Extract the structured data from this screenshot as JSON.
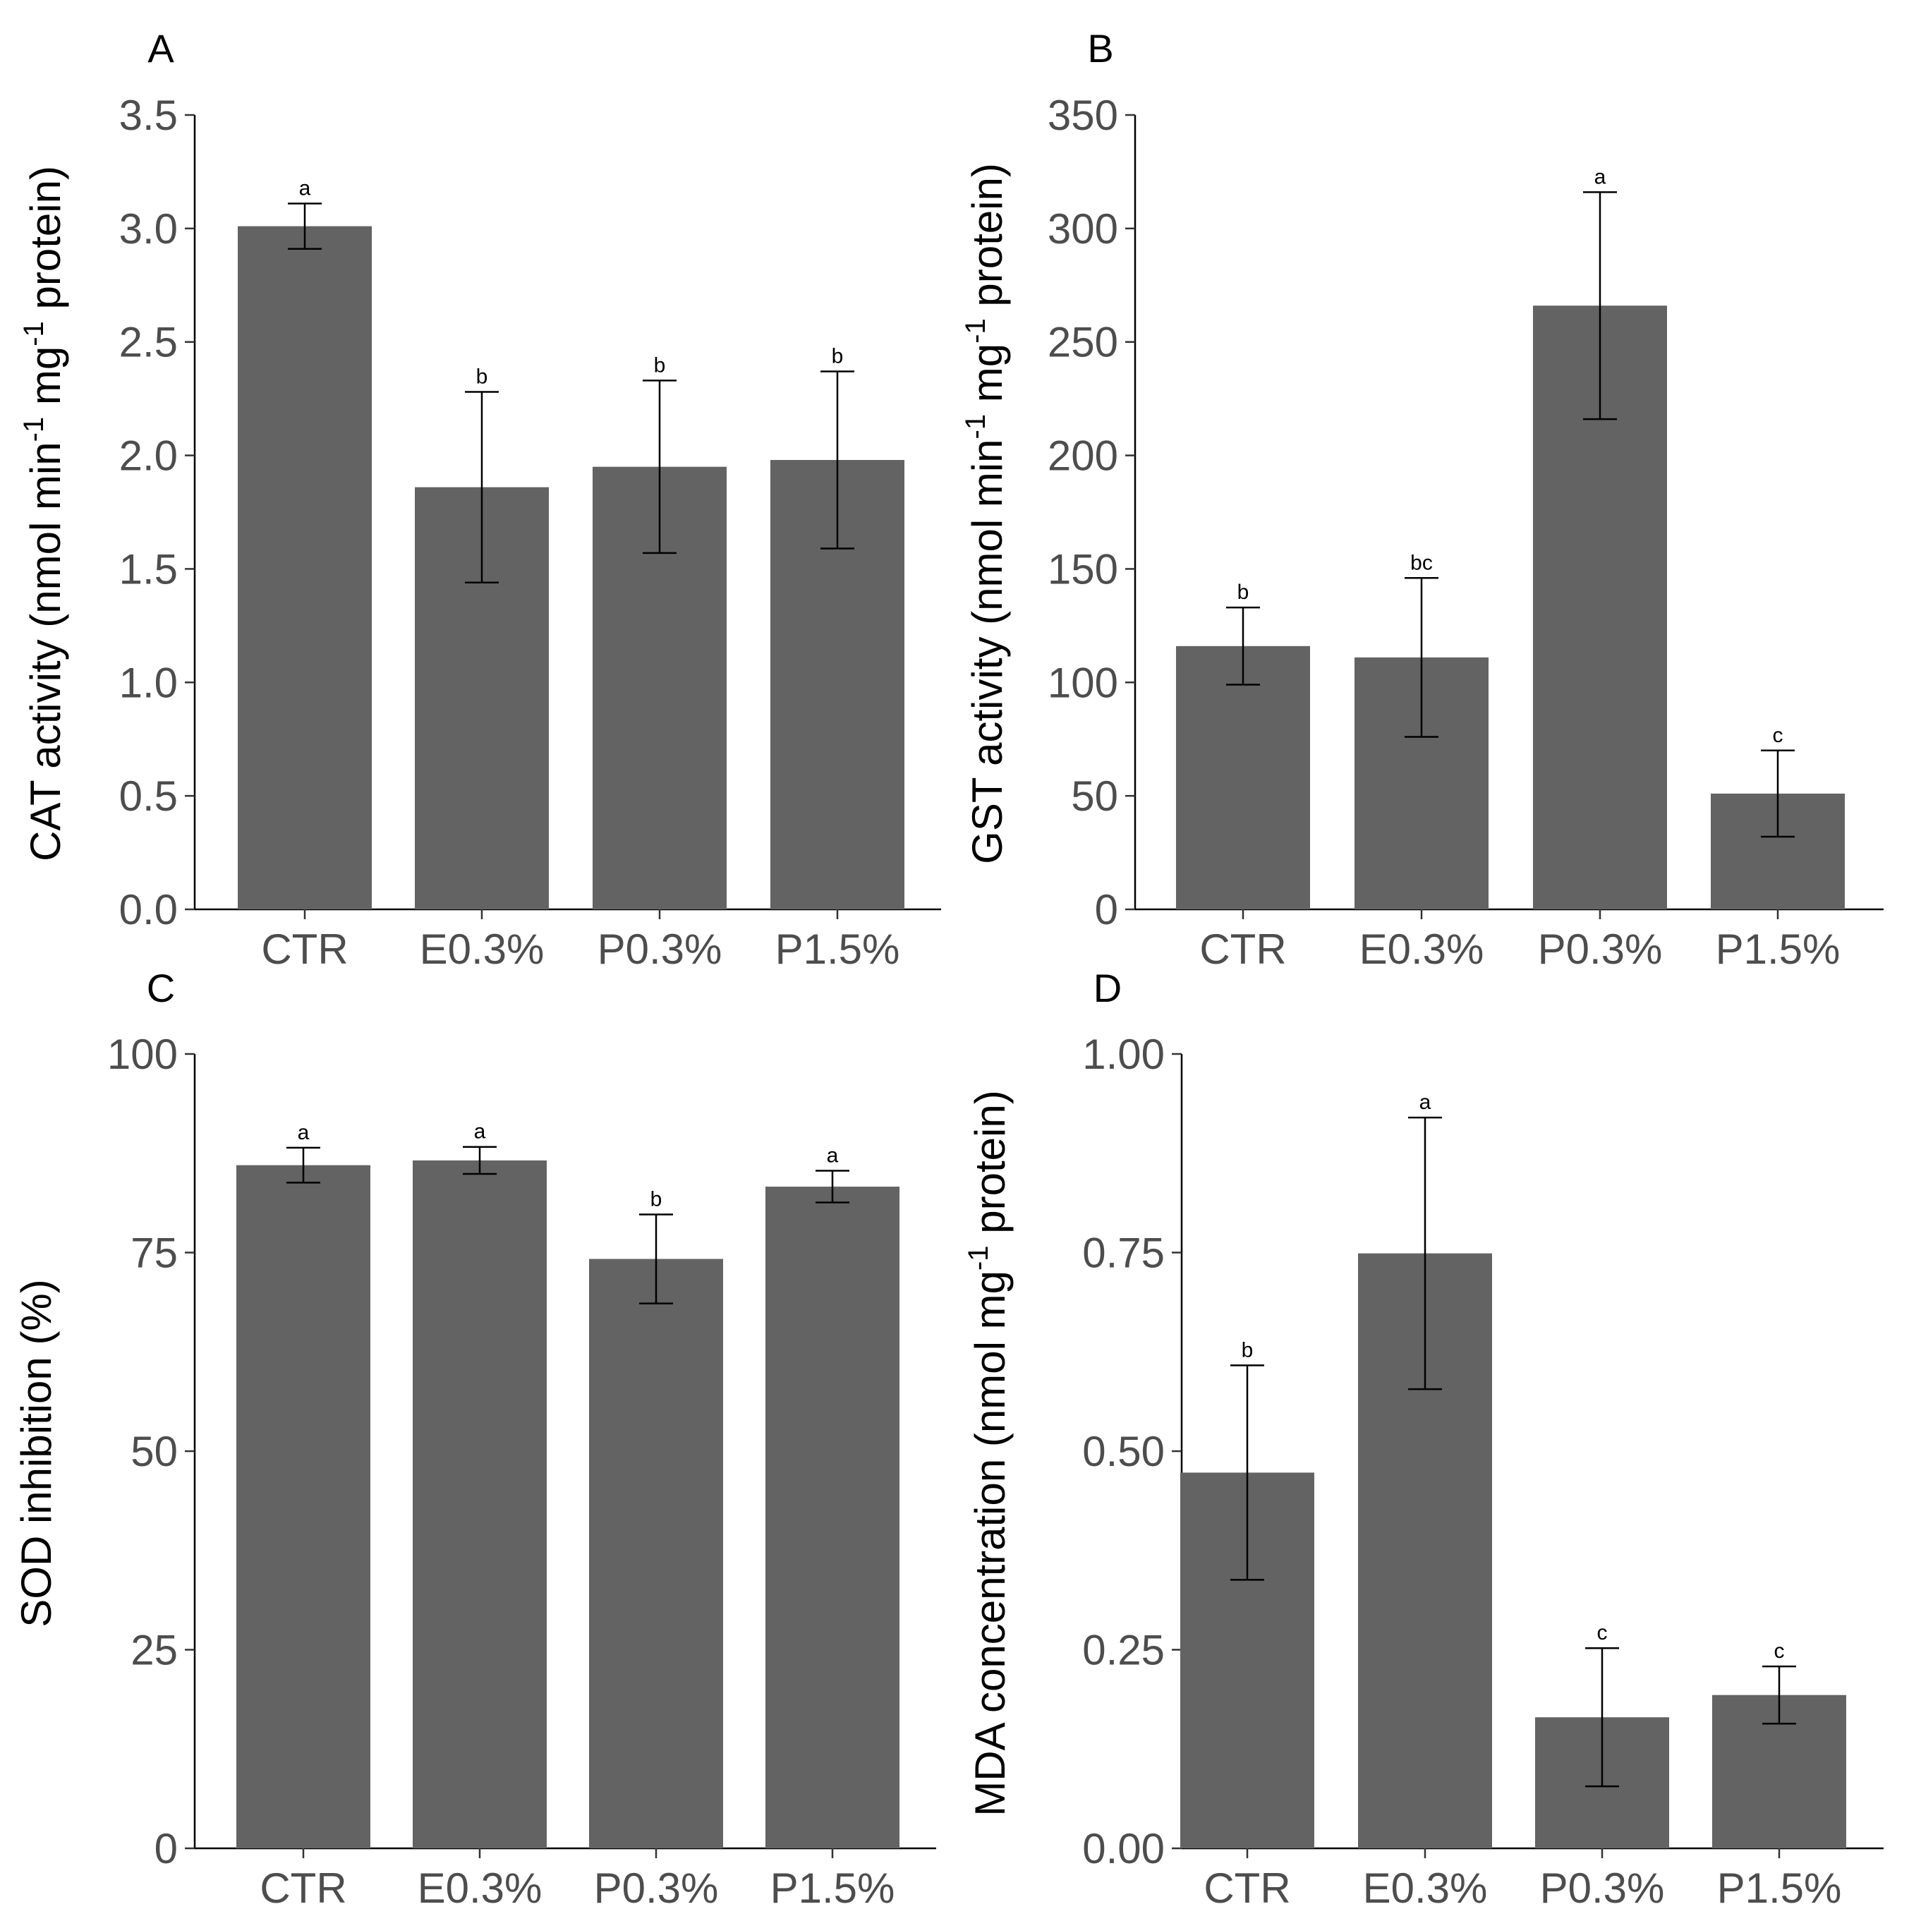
{
  "chart_data": [
    {
      "type": "bar",
      "panel": "A",
      "categories": [
        "CTR",
        "E0.3%",
        "P0.3%",
        "P1.5%"
      ],
      "values": [
        3.01,
        1.86,
        1.95,
        1.98
      ],
      "errors": [
        0.1,
        0.42,
        0.38,
        0.39
      ],
      "significance": [
        "a",
        "b",
        "b",
        "b"
      ],
      "ylabel": {
        "prefix": "CAT activity (nmol min",
        "sup1": "-1",
        "mid": " mg",
        "sup2": "-1",
        "suffix": " protein)"
      },
      "ylim": [
        0,
        3.5
      ],
      "yticks": [
        "0.0",
        "0.5",
        "1.0",
        "1.5",
        "2.0",
        "2.5",
        "3.0",
        "3.5"
      ],
      "bar_color": "#636363"
    },
    {
      "type": "bar",
      "panel": "B",
      "categories": [
        "CTR",
        "E0.3%",
        "P0.3%",
        "P1.5%"
      ],
      "values": [
        116,
        111,
        266,
        51
      ],
      "errors": [
        17,
        35,
        50,
        19
      ],
      "significance": [
        "b",
        "bc",
        "a",
        "c"
      ],
      "ylabel": {
        "prefix": "GST activity (nmol min",
        "sup1": "-1",
        "mid": " mg",
        "sup2": "-1",
        "suffix": " protein)"
      },
      "ylim": [
        0,
        350
      ],
      "yticks": [
        "0",
        "50",
        "100",
        "150",
        "200",
        "250",
        "300",
        "350"
      ],
      "bar_color": "#636363"
    },
    {
      "type": "bar",
      "panel": "C",
      "categories": [
        "CTR",
        "E0.3%",
        "P0.3%",
        "P1.5%"
      ],
      "values": [
        86.0,
        86.6,
        74.2,
        83.3
      ],
      "errors": [
        2.2,
        1.7,
        5.6,
        2.0
      ],
      "significance": [
        "a",
        "a",
        "b",
        "a"
      ],
      "ylabel": {
        "prefix": "SOD inhibition (%)",
        "sup1": "",
        "mid": "",
        "sup2": "",
        "suffix": ""
      },
      "ylim": [
        0,
        100
      ],
      "yticks": [
        "0",
        "25",
        "50",
        "75",
        "100"
      ],
      "bar_color": "#636363"
    },
    {
      "type": "bar",
      "panel": "D",
      "categories": [
        "CTR",
        "E0.3%",
        "P0.3%",
        "P1.5%"
      ],
      "values": [
        0.473,
        0.749,
        0.165,
        0.193
      ],
      "errors": [
        0.135,
        0.171,
        0.087,
        0.036
      ],
      "significance": [
        "b",
        "a",
        "c",
        "c"
      ],
      "ylabel": {
        "prefix": "MDA concentration (nmol mg",
        "sup1": "-1",
        "mid": " protein)",
        "sup2": "",
        "suffix": ""
      },
      "ylim": [
        0,
        1.0
      ],
      "yticks": [
        "0.00",
        "0.25",
        "0.50",
        "0.75",
        "1.00"
      ],
      "bar_color": "#636363"
    }
  ]
}
